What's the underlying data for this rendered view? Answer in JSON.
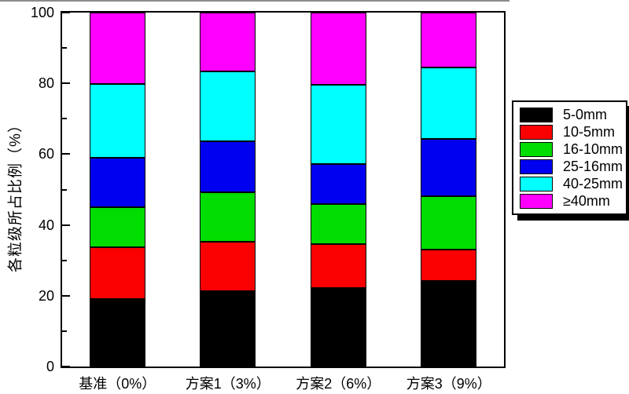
{
  "figure": {
    "background": "#ffffff"
  },
  "chart_data": {
    "type": "bar",
    "stacked": true,
    "title": "",
    "xlabel": "",
    "ylabel": "各粒级所占比例（%）",
    "ylim": [
      0,
      100
    ],
    "grid": false,
    "yticks_major": [
      0,
      20,
      40,
      60,
      80,
      100
    ],
    "yticks_minor": [
      10,
      30,
      50,
      70,
      90
    ],
    "categories": [
      "基准（0%）",
      "方案1（3%）",
      "方案2（6%）",
      "方案3（9%）"
    ],
    "series": [
      {
        "name": "5-0mm",
        "color": "#000000",
        "values": [
          19.0,
          21.2,
          22.1,
          24.2
        ]
      },
      {
        "name": "10-5mm",
        "color": "#fb0000",
        "values": [
          14.8,
          14.0,
          12.5,
          8.8
        ]
      },
      {
        "name": "16-10mm",
        "color": "#00dd00",
        "values": [
          11.2,
          14.0,
          11.3,
          15.1
        ]
      },
      {
        "name": "25-16mm",
        "color": "#0000f0",
        "values": [
          14.0,
          14.5,
          11.3,
          16.1
        ]
      },
      {
        "name": "40-25mm",
        "color": "#00ffff",
        "values": [
          20.8,
          19.6,
          22.5,
          20.3
        ]
      },
      {
        "name": "≥40mm",
        "color": "#ff00ff",
        "values": [
          20.2,
          16.7,
          20.3,
          15.5
        ]
      }
    ],
    "legend": {
      "position": "right",
      "entries": [
        "5-0mm",
        "10-5mm",
        "16-10mm",
        "25-16mm",
        "40-25mm",
        "≥40mm"
      ]
    }
  }
}
